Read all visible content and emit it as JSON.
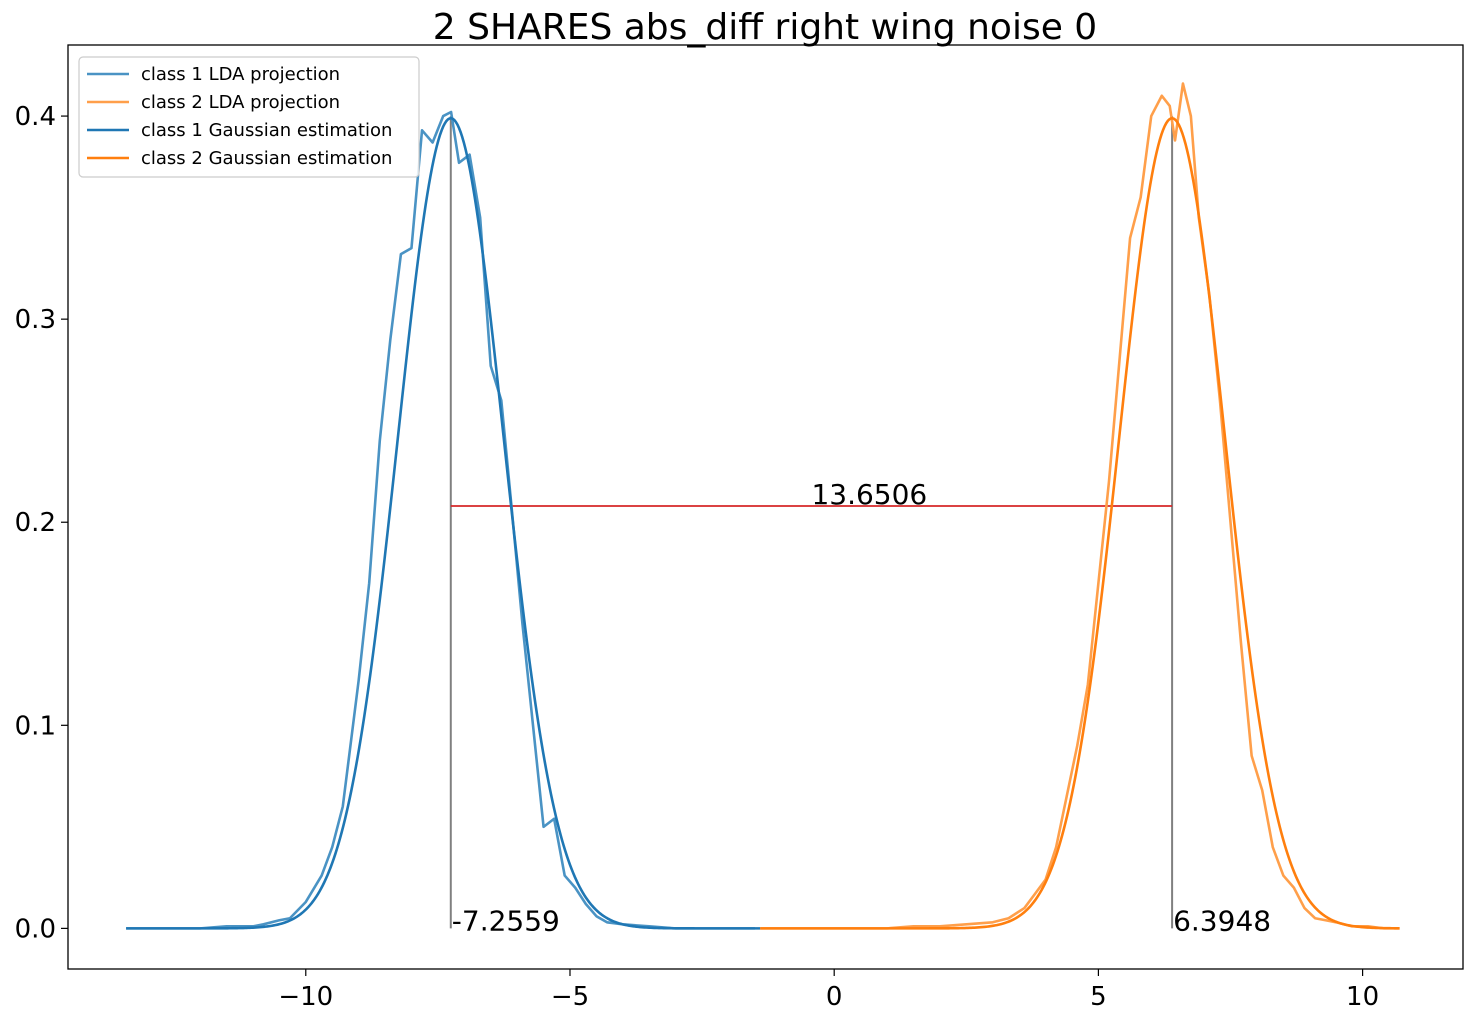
{
  "chart_data": {
    "type": "line",
    "title": "2 SHARES abs_diff right wing noise 0",
    "xlabel": "",
    "ylabel": "",
    "xlim": [
      -14.5,
      11.9
    ],
    "ylim": [
      -0.02,
      0.435
    ],
    "xticks": [
      -10,
      -5,
      0,
      5,
      10
    ],
    "xtick_labels": [
      "−10",
      "−5",
      "0",
      "5",
      "10"
    ],
    "yticks": [
      0.0,
      0.1,
      0.2,
      0.3,
      0.4
    ],
    "ytick_labels": [
      "0.0",
      "0.1",
      "0.2",
      "0.3",
      "0.4"
    ],
    "grid": false,
    "legend_position": "top-left",
    "colors": {
      "class1_proj": "#4a93c4",
      "class2_proj": "#ff9f4a",
      "class1_gauss": "#1f77b4",
      "class2_gauss": "#ff7f0e",
      "mean_line": "#808080",
      "distance_line": "#d62728"
    },
    "series": [
      {
        "name": "class 1 LDA projection",
        "x": [
          -13.4,
          -13.0,
          -12.5,
          -12.0,
          -11.5,
          -11.0,
          -10.8,
          -10.5,
          -10.3,
          -10.0,
          -9.7,
          -9.5,
          -9.3,
          -9.0,
          -8.8,
          -8.6,
          -8.4,
          -8.2,
          -8.0,
          -7.8,
          -7.6,
          -7.4,
          -7.25,
          -7.1,
          -6.9,
          -6.7,
          -6.5,
          -6.3,
          -6.1,
          -5.9,
          -5.7,
          -5.5,
          -5.3,
          -5.1,
          -4.9,
          -4.7,
          -4.5,
          -4.3,
          -4.0,
          -3.5,
          -3.0,
          -2.5,
          -2.0,
          -1.5
        ],
        "y": [
          0.0,
          0.0,
          0.0,
          0.0,
          0.001,
          0.001,
          0.002,
          0.004,
          0.005,
          0.013,
          0.026,
          0.04,
          0.06,
          0.122,
          0.17,
          0.24,
          0.29,
          0.332,
          0.335,
          0.393,
          0.387,
          0.4,
          0.402,
          0.377,
          0.381,
          0.35,
          0.277,
          0.26,
          0.206,
          0.15,
          0.1,
          0.05,
          0.054,
          0.026,
          0.02,
          0.012,
          0.006,
          0.003,
          0.002,
          0.001,
          0.0,
          0.0,
          0.0,
          0.0
        ]
      },
      {
        "name": "class 2 LDA projection",
        "x": [
          -1.4,
          -1.0,
          -0.5,
          0.0,
          0.5,
          1.0,
          1.5,
          2.0,
          2.5,
          3.0,
          3.3,
          3.6,
          3.8,
          4.0,
          4.2,
          4.4,
          4.6,
          4.8,
          5.0,
          5.2,
          5.4,
          5.6,
          5.8,
          6.0,
          6.2,
          6.35,
          6.45,
          6.6,
          6.75,
          6.9,
          7.1,
          7.3,
          7.5,
          7.7,
          7.9,
          8.1,
          8.3,
          8.5,
          8.7,
          8.9,
          9.1,
          9.3,
          9.5,
          9.8,
          10.1,
          10.4,
          10.7
        ],
        "y": [
          0.0,
          0.0,
          0.0,
          0.0,
          0.0,
          0.0,
          0.001,
          0.001,
          0.002,
          0.003,
          0.005,
          0.01,
          0.017,
          0.024,
          0.04,
          0.065,
          0.09,
          0.12,
          0.17,
          0.22,
          0.28,
          0.34,
          0.36,
          0.4,
          0.41,
          0.405,
          0.388,
          0.416,
          0.4,
          0.35,
          0.312,
          0.26,
          0.2,
          0.14,
          0.085,
          0.068,
          0.04,
          0.026,
          0.02,
          0.01,
          0.005,
          0.004,
          0.003,
          0.001,
          0.001,
          0.0,
          0.0
        ]
      },
      {
        "name": "class 1 Gaussian estimation",
        "gaussian": {
          "mean": -7.2559,
          "sigma": 1.0,
          "xmin": -13.4,
          "xmax": -1.4
        }
      },
      {
        "name": "class 2 Gaussian estimation",
        "gaussian": {
          "mean": 6.3948,
          "sigma": 1.0,
          "xmin": -1.4,
          "xmax": 10.7
        }
      }
    ],
    "annotations": {
      "mean1_label": "-7.2559",
      "mean2_label": "6.3948",
      "distance_label": "13.6506",
      "mean1": -7.2559,
      "mean2": 6.3948,
      "distance_y": 0.208
    }
  }
}
